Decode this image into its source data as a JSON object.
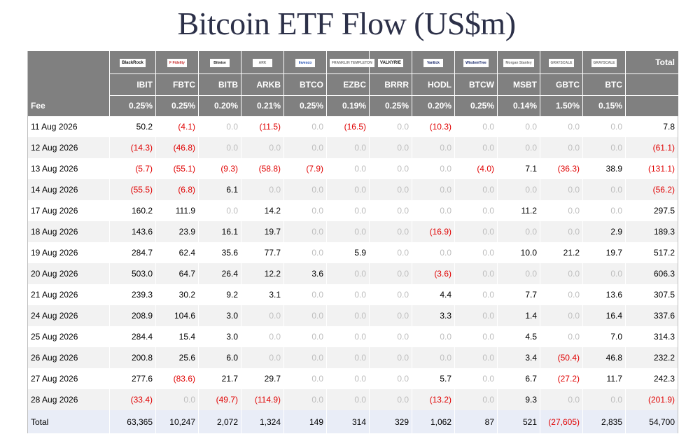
{
  "title": "Bitcoin ETF Flow (US$m)",
  "issuers": [
    {
      "logo": "BlackRock",
      "ticker": "IBIT",
      "fee": "0.25%"
    },
    {
      "logo": "F Fidelity",
      "ticker": "FBTC",
      "fee": "0.25%"
    },
    {
      "logo": "Bitwise",
      "ticker": "BITB",
      "fee": "0.20%"
    },
    {
      "logo": "ARK",
      "ticker": "ARKB",
      "fee": "0.21%"
    },
    {
      "logo": "Invesco",
      "ticker": "BTCO",
      "fee": "0.25%"
    },
    {
      "logo": "FRANKLIN TEMPLETON",
      "ticker": "EZBC",
      "fee": "0.19%"
    },
    {
      "logo": "VALKYRIE",
      "ticker": "BRRR",
      "fee": "0.25%"
    },
    {
      "logo": "VanEck",
      "ticker": "HODL",
      "fee": "0.20%"
    },
    {
      "logo": "WisdomTree",
      "ticker": "BTCW",
      "fee": "0.25%"
    },
    {
      "logo": "Morgan Stanley",
      "ticker": "MSBT",
      "fee": "0.14%"
    },
    {
      "logo": "GRAYSCALE",
      "ticker": "GBTC",
      "fee": "1.50%"
    },
    {
      "logo": "GRAYSCALE",
      "ticker": "BTC",
      "fee": "0.15%"
    }
  ],
  "headers": {
    "total": "Total",
    "fee": "Fee"
  },
  "rows": [
    {
      "date": "11 Aug 2026",
      "values": [
        "50.2",
        "(4.1)",
        "0.0",
        "(11.5)",
        "0.0",
        "(16.5)",
        "0.0",
        "(10.3)",
        "0.0",
        "0.0",
        "0.0",
        "0.0"
      ],
      "total": "7.8"
    },
    {
      "date": "12 Aug 2026",
      "values": [
        "(14.3)",
        "(46.8)",
        "0.0",
        "0.0",
        "0.0",
        "0.0",
        "0.0",
        "0.0",
        "0.0",
        "0.0",
        "0.0",
        "0.0"
      ],
      "total": "(61.1)"
    },
    {
      "date": "13 Aug 2026",
      "values": [
        "(5.7)",
        "(55.1)",
        "(9.3)",
        "(58.8)",
        "(7.9)",
        "0.0",
        "0.0",
        "0.0",
        "(4.0)",
        "7.1",
        "(36.3)",
        "38.9"
      ],
      "total": "(131.1)"
    },
    {
      "date": "14 Aug 2026",
      "values": [
        "(55.5)",
        "(6.8)",
        "6.1",
        "0.0",
        "0.0",
        "0.0",
        "0.0",
        "0.0",
        "0.0",
        "0.0",
        "0.0",
        "0.0"
      ],
      "total": "(56.2)"
    },
    {
      "date": "17 Aug 2026",
      "values": [
        "160.2",
        "111.9",
        "0.0",
        "14.2",
        "0.0",
        "0.0",
        "0.0",
        "0.0",
        "0.0",
        "11.2",
        "0.0",
        "0.0"
      ],
      "total": "297.5"
    },
    {
      "date": "18 Aug 2026",
      "values": [
        "143.6",
        "23.9",
        "16.1",
        "19.7",
        "0.0",
        "0.0",
        "0.0",
        "(16.9)",
        "0.0",
        "0.0",
        "0.0",
        "2.9"
      ],
      "total": "189.3"
    },
    {
      "date": "19 Aug 2026",
      "values": [
        "284.7",
        "62.4",
        "35.6",
        "77.7",
        "0.0",
        "5.9",
        "0.0",
        "0.0",
        "0.0",
        "10.0",
        "21.2",
        "19.7"
      ],
      "total": "517.2"
    },
    {
      "date": "20 Aug 2026",
      "values": [
        "503.0",
        "64.7",
        "26.4",
        "12.2",
        "3.6",
        "0.0",
        "0.0",
        "(3.6)",
        "0.0",
        "0.0",
        "0.0",
        "0.0"
      ],
      "total": "606.3"
    },
    {
      "date": "21 Aug 2026",
      "values": [
        "239.3",
        "30.2",
        "9.2",
        "3.1",
        "0.0",
        "0.0",
        "0.0",
        "4.4",
        "0.0",
        "7.7",
        "0.0",
        "13.6"
      ],
      "total": "307.5"
    },
    {
      "date": "24 Aug 2026",
      "values": [
        "208.9",
        "104.6",
        "3.0",
        "0.0",
        "0.0",
        "0.0",
        "0.0",
        "3.3",
        "0.0",
        "1.4",
        "0.0",
        "16.4"
      ],
      "total": "337.6"
    },
    {
      "date": "25 Aug 2026",
      "values": [
        "284.4",
        "15.4",
        "3.0",
        "0.0",
        "0.0",
        "0.0",
        "0.0",
        "0.0",
        "0.0",
        "4.5",
        "0.0",
        "7.0"
      ],
      "total": "314.3"
    },
    {
      "date": "26 Aug 2026",
      "values": [
        "200.8",
        "25.6",
        "6.0",
        "0.0",
        "0.0",
        "0.0",
        "0.0",
        "0.0",
        "0.0",
        "3.4",
        "(50.4)",
        "46.8"
      ],
      "total": "232.2"
    },
    {
      "date": "27 Aug 2026",
      "values": [
        "277.6",
        "(83.6)",
        "21.7",
        "29.7",
        "0.0",
        "0.0",
        "0.0",
        "5.7",
        "0.0",
        "6.7",
        "(27.2)",
        "11.7"
      ],
      "total": "242.3"
    },
    {
      "date": "28 Aug 2026",
      "values": [
        "(33.4)",
        "0.0",
        "(49.7)",
        "(114.9)",
        "0.0",
        "0.0",
        "0.0",
        "(13.2)",
        "0.0",
        "9.3",
        "0.0",
        "0.0"
      ],
      "total": "(201.9)"
    }
  ],
  "totals": {
    "label": "Total",
    "values": [
      "63,365",
      "10,247",
      "2,072",
      "1,324",
      "149",
      "314",
      "329",
      "1,062",
      "87",
      "521",
      "(27,605)",
      "2,835"
    ],
    "total": "54,700"
  },
  "colors": {
    "header_bg": "#808080",
    "negative": "#e00000",
    "zero": "#bdbdbd",
    "title": "#2c3048",
    "total_row_bg": "#e9edf7"
  }
}
